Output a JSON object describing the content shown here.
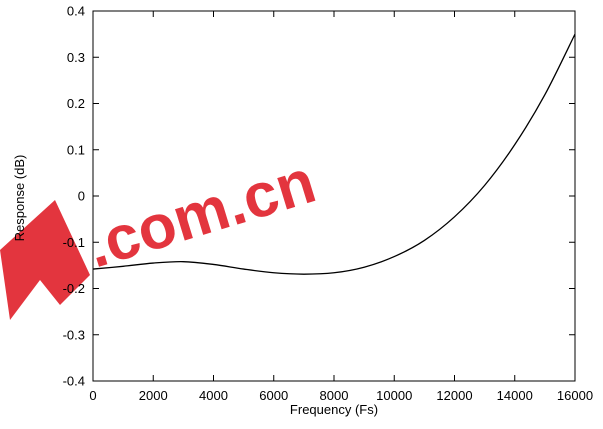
{
  "chart_data": {
    "type": "line",
    "title": "",
    "xlabel": "Frequency (Fs)",
    "ylabel": "Response (dB)",
    "xlim": [
      0,
      16000
    ],
    "ylim": [
      -0.4,
      0.4
    ],
    "x_ticks": [
      0,
      2000,
      4000,
      6000,
      8000,
      10000,
      12000,
      14000,
      16000
    ],
    "x_tick_labels": [
      "0",
      "2000",
      "4000",
      "6000",
      "8000",
      "10000",
      "12000",
      "14000",
      "16000"
    ],
    "y_ticks": [
      -0.4,
      -0.3,
      -0.2,
      -0.1,
      0,
      0.1,
      0.2,
      0.3,
      0.4
    ],
    "y_tick_labels": [
      "-0.4",
      "-0.3",
      "-0.2",
      "-0.1",
      "0",
      "0.1",
      "0.2",
      "0.3",
      "0.4"
    ],
    "grid": false,
    "legend": "none",
    "series": [
      {
        "color": "#000000",
        "x": [
          0,
          1000,
          2000,
          3000,
          4000,
          5000,
          6000,
          7000,
          8000,
          9000,
          10000,
          11000,
          12000,
          13000,
          14000,
          15000,
          16000
        ],
        "y": [
          -0.158,
          -0.152,
          -0.145,
          -0.142,
          -0.148,
          -0.158,
          -0.166,
          -0.169,
          -0.166,
          -0.154,
          -0.131,
          -0.096,
          -0.045,
          0.023,
          0.111,
          0.219,
          0.35
        ]
      }
    ]
  },
  "watermark": {
    "text": ".com.cn",
    "color": "#e0202a"
  }
}
